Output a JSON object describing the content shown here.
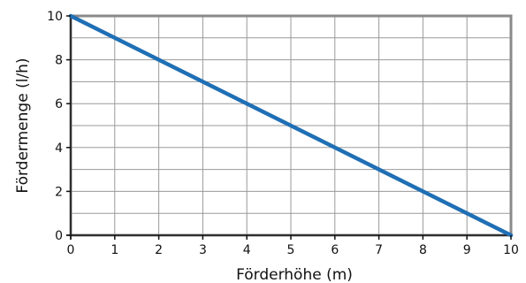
{
  "chart_data": {
    "type": "line",
    "xlabel": "Förderhöhe (m)",
    "ylabel": "Fördermenge (l/h)",
    "xlim": [
      0,
      10
    ],
    "ylim": [
      0,
      10
    ],
    "x_ticks": [
      0,
      1,
      2,
      3,
      4,
      5,
      6,
      7,
      8,
      9,
      10
    ],
    "y_ticks": [
      0,
      2,
      4,
      6,
      8,
      10
    ],
    "x_gridlines": [
      1,
      2,
      3,
      4,
      5,
      6,
      7,
      8,
      9
    ],
    "y_gridlines": [
      1,
      2,
      3,
      4,
      5,
      6,
      7,
      8,
      9
    ],
    "grid": true,
    "series": [
      {
        "x": [
          0,
          10
        ],
        "y": [
          10,
          0
        ],
        "color": "#1f6fb5"
      }
    ],
    "colors": {
      "frame": "#8a8a8a",
      "grid": "#9a9a9a",
      "axis": "#111111",
      "line": "#1f6fb5"
    }
  }
}
